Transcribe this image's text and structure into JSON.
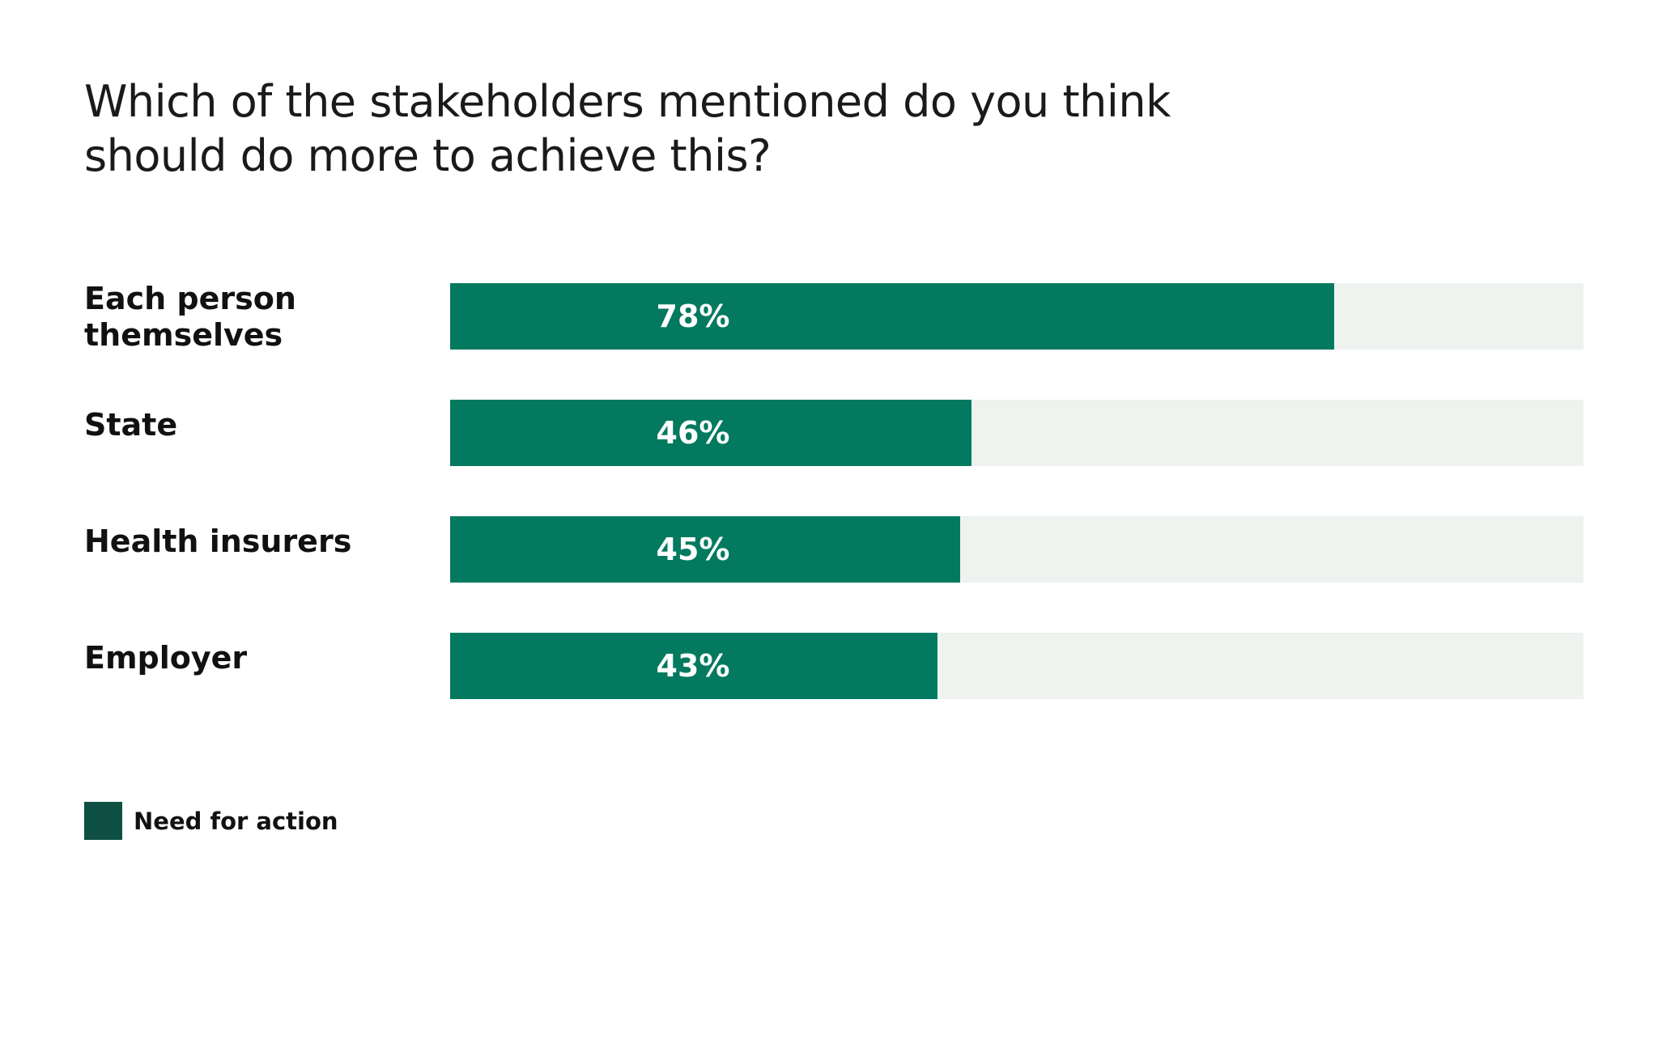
{
  "chart_data": {
    "type": "bar",
    "orientation": "horizontal",
    "title": "Which of the stakeholders mentioned do you think should do more to achieve this?",
    "categories": [
      "Each person themselves",
      "State",
      "Health insurers",
      "Employer"
    ],
    "category_lines": [
      [
        "Each person",
        "themselves"
      ],
      [
        "State"
      ],
      [
        "Health insurers"
      ],
      [
        "Employer"
      ]
    ],
    "series": [
      {
        "name": "Need for action",
        "values": [
          78,
          46,
          45,
          43
        ],
        "labels": [
          "78%",
          "46%",
          "45%",
          "43%"
        ]
      }
    ],
    "xlim": [
      0,
      100
    ],
    "unit": "%",
    "grid": false,
    "legend_position": "bottom-left",
    "colors": {
      "bar": "#037a5f",
      "track": "#eef3f0",
      "legend_swatch": "#0e4f44",
      "value_text": "#ffffff",
      "label_text": "#111111"
    }
  }
}
